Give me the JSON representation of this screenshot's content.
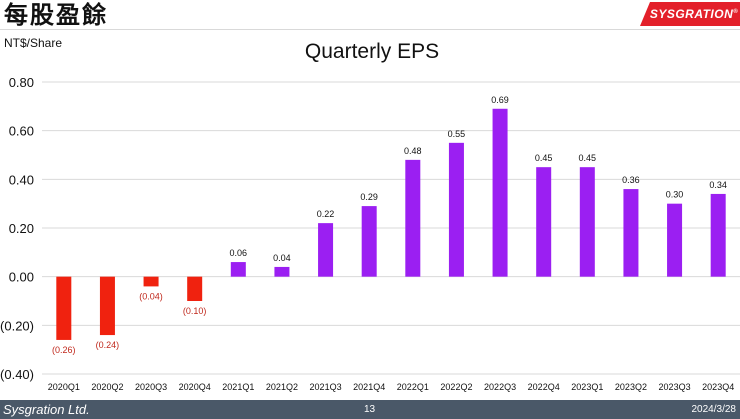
{
  "header": {
    "title": "每股盈餘",
    "logo_text": "SYSGRATION",
    "logo_mark": "®"
  },
  "footer": {
    "company": "Sysgration Ltd.",
    "page": "13",
    "date": "2024/3/28"
  },
  "colors": {
    "positive": "#9b1ff2",
    "negative": "#f0220f",
    "negative_label": "#c0281c",
    "grid": "#d9d9d9",
    "footer": "#4a5868",
    "brand": "#e3202a"
  },
  "chart_data": {
    "type": "bar",
    "title": "Quarterly EPS",
    "ylabel": "NT$/Share",
    "xlabel": "",
    "ylim": [
      -0.4,
      0.8
    ],
    "yticks": [
      0.8,
      0.6,
      0.4,
      0.2,
      0.0,
      -0.2,
      -0.4
    ],
    "ytick_labels": [
      "0.80",
      "0.60",
      "0.40",
      "0.20",
      "0.00",
      "(0.20)",
      "(0.40)"
    ],
    "grid": true,
    "categories": [
      "2020Q1",
      "2020Q2",
      "2020Q3",
      "2020Q4",
      "2021Q1",
      "2021Q2",
      "2021Q3",
      "2021Q4",
      "2022Q1",
      "2022Q2",
      "2022Q3",
      "2022Q4",
      "2023Q1",
      "2023Q2",
      "2023Q3",
      "2023Q4"
    ],
    "values": [
      -0.26,
      -0.24,
      -0.04,
      -0.1,
      0.06,
      0.04,
      0.22,
      0.29,
      0.48,
      0.55,
      0.69,
      0.45,
      0.45,
      0.36,
      0.3,
      0.34
    ],
    "data_labels": [
      "(0.26)",
      "(0.24)",
      "(0.04)",
      "(0.10)",
      "0.06",
      "0.04",
      "0.22",
      "0.29",
      "0.48",
      "0.55",
      "0.69",
      "0.45",
      "0.45",
      "0.36",
      "0.30",
      "0.34"
    ]
  }
}
